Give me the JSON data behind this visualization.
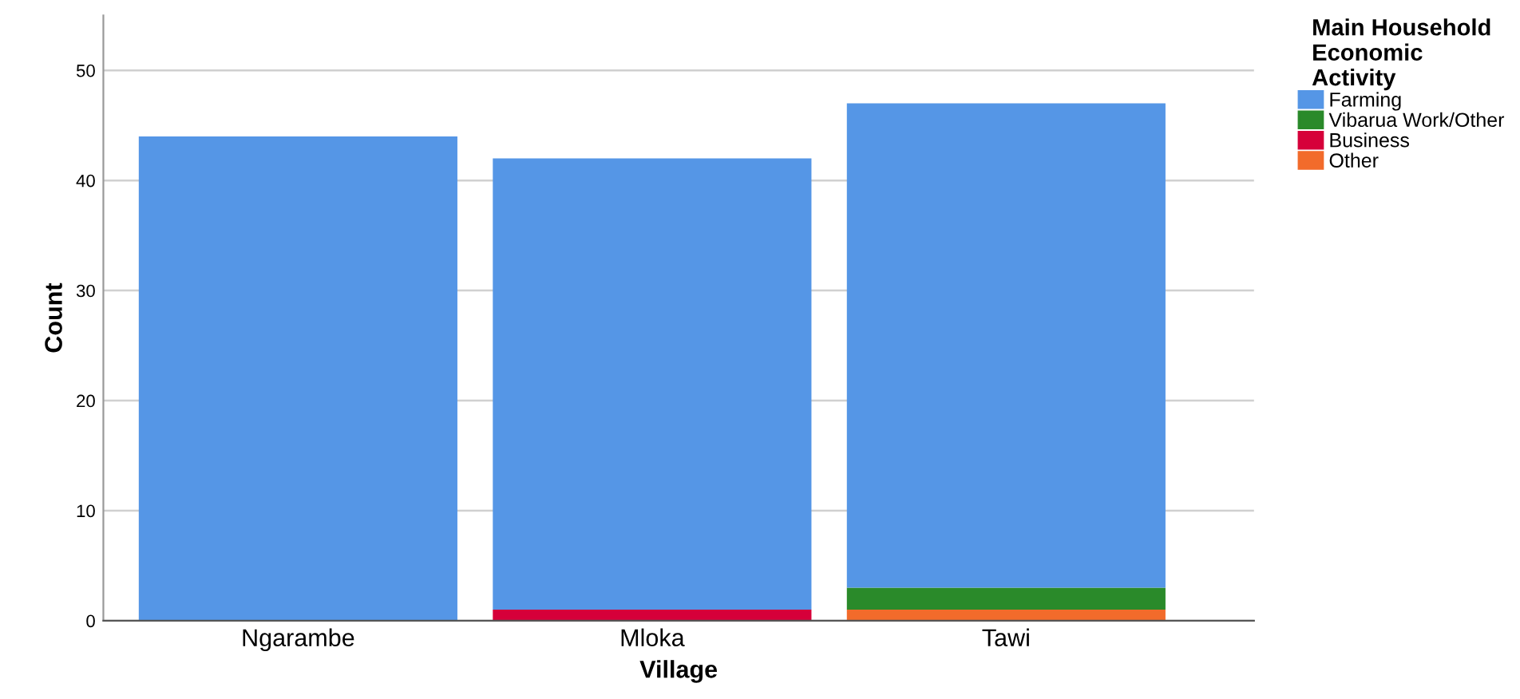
{
  "chart_data": {
    "type": "bar",
    "stacked": true,
    "xlabel": "Village",
    "ylabel": "Count",
    "legend_title": "Main Household\nEconomic\nActivity",
    "categories": [
      "Ngarambe",
      "Mloka",
      "Tawi"
    ],
    "series": [
      {
        "name": "Other",
        "color": "#f26b2b",
        "values": [
          0,
          0,
          1
        ]
      },
      {
        "name": "Business",
        "color": "#d6003a",
        "values": [
          0,
          1,
          0
        ]
      },
      {
        "name": "Vibarua Work/Other",
        "color": "#2a8a2a",
        "values": [
          0,
          0,
          2
        ]
      },
      {
        "name": "Farming",
        "color": "#5596e6",
        "values": [
          44,
          41,
          44
        ]
      }
    ],
    "ylim": [
      0,
      55
    ],
    "yticks": [
      0,
      10,
      20,
      30,
      40,
      50
    ],
    "grid": "y",
    "legend": "top right"
  }
}
